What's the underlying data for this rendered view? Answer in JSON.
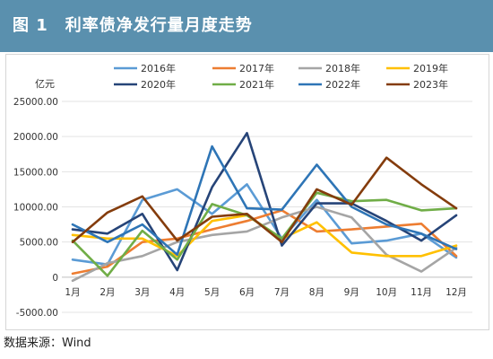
{
  "header": {
    "title": "图 1　利率债净发行量月度走势"
  },
  "source_note": "数据来源：Wind",
  "chart_data": {
    "type": "line",
    "ylabel": "亿元",
    "ylim": [
      -5000,
      25000
    ],
    "yticks": [
      "-5000.00",
      "0",
      "5000.00",
      "10000.00",
      "15000.00",
      "20000.00",
      "25000.00"
    ],
    "ytick_values": [
      -5000,
      0,
      5000,
      10000,
      15000,
      20000,
      25000
    ],
    "categories": [
      "1月",
      "2月",
      "3月",
      "4月",
      "5月",
      "6月",
      "7月",
      "8月",
      "9月",
      "10月",
      "11月",
      "12月"
    ],
    "grid": true,
    "legend": "top",
    "series": [
      {
        "name": "2016年",
        "color": "#5b9bd5",
        "values": [
          2500,
          1800,
          11000,
          12500,
          9000,
          13200,
          5500,
          11000,
          4800,
          5200,
          6200,
          2800
        ]
      },
      {
        "name": "2017年",
        "color": "#ed7d31",
        "values": [
          500,
          1500,
          5000,
          5500,
          6800,
          8000,
          9500,
          6500,
          6800,
          7200,
          7600,
          3000
        ]
      },
      {
        "name": "2018年",
        "color": "#a5a5a5",
        "values": [
          -500,
          2000,
          3000,
          5000,
          6000,
          6500,
          8500,
          10000,
          8500,
          3200,
          800,
          4200
        ]
      },
      {
        "name": "2019年",
        "color": "#ffc000",
        "values": [
          6000,
          5500,
          5500,
          3000,
          8000,
          8800,
          5500,
          7800,
          3500,
          3000,
          3000,
          4500
        ]
      },
      {
        "name": "2020年",
        "color": "#264478",
        "values": [
          6800,
          6200,
          9000,
          1000,
          12800,
          20500,
          4500,
          10500,
          10500,
          8000,
          5200,
          8800
        ]
      },
      {
        "name": "2021年",
        "color": "#70ad47",
        "values": [
          5200,
          200,
          6600,
          2500,
          10400,
          8800,
          5500,
          12000,
          10800,
          11000,
          9500,
          9800
        ]
      },
      {
        "name": "2022年",
        "color": "#2e75b6",
        "values": [
          7500,
          5000,
          7500,
          3200,
          18600,
          9800,
          9600,
          16000,
          10000,
          7500,
          6200,
          4000
        ]
      },
      {
        "name": "2023年",
        "color": "#843c0c",
        "values": [
          5000,
          9200,
          11500,
          5200,
          8600,
          9000,
          5000,
          12500,
          10300,
          17000,
          13200,
          9800
        ]
      }
    ]
  }
}
